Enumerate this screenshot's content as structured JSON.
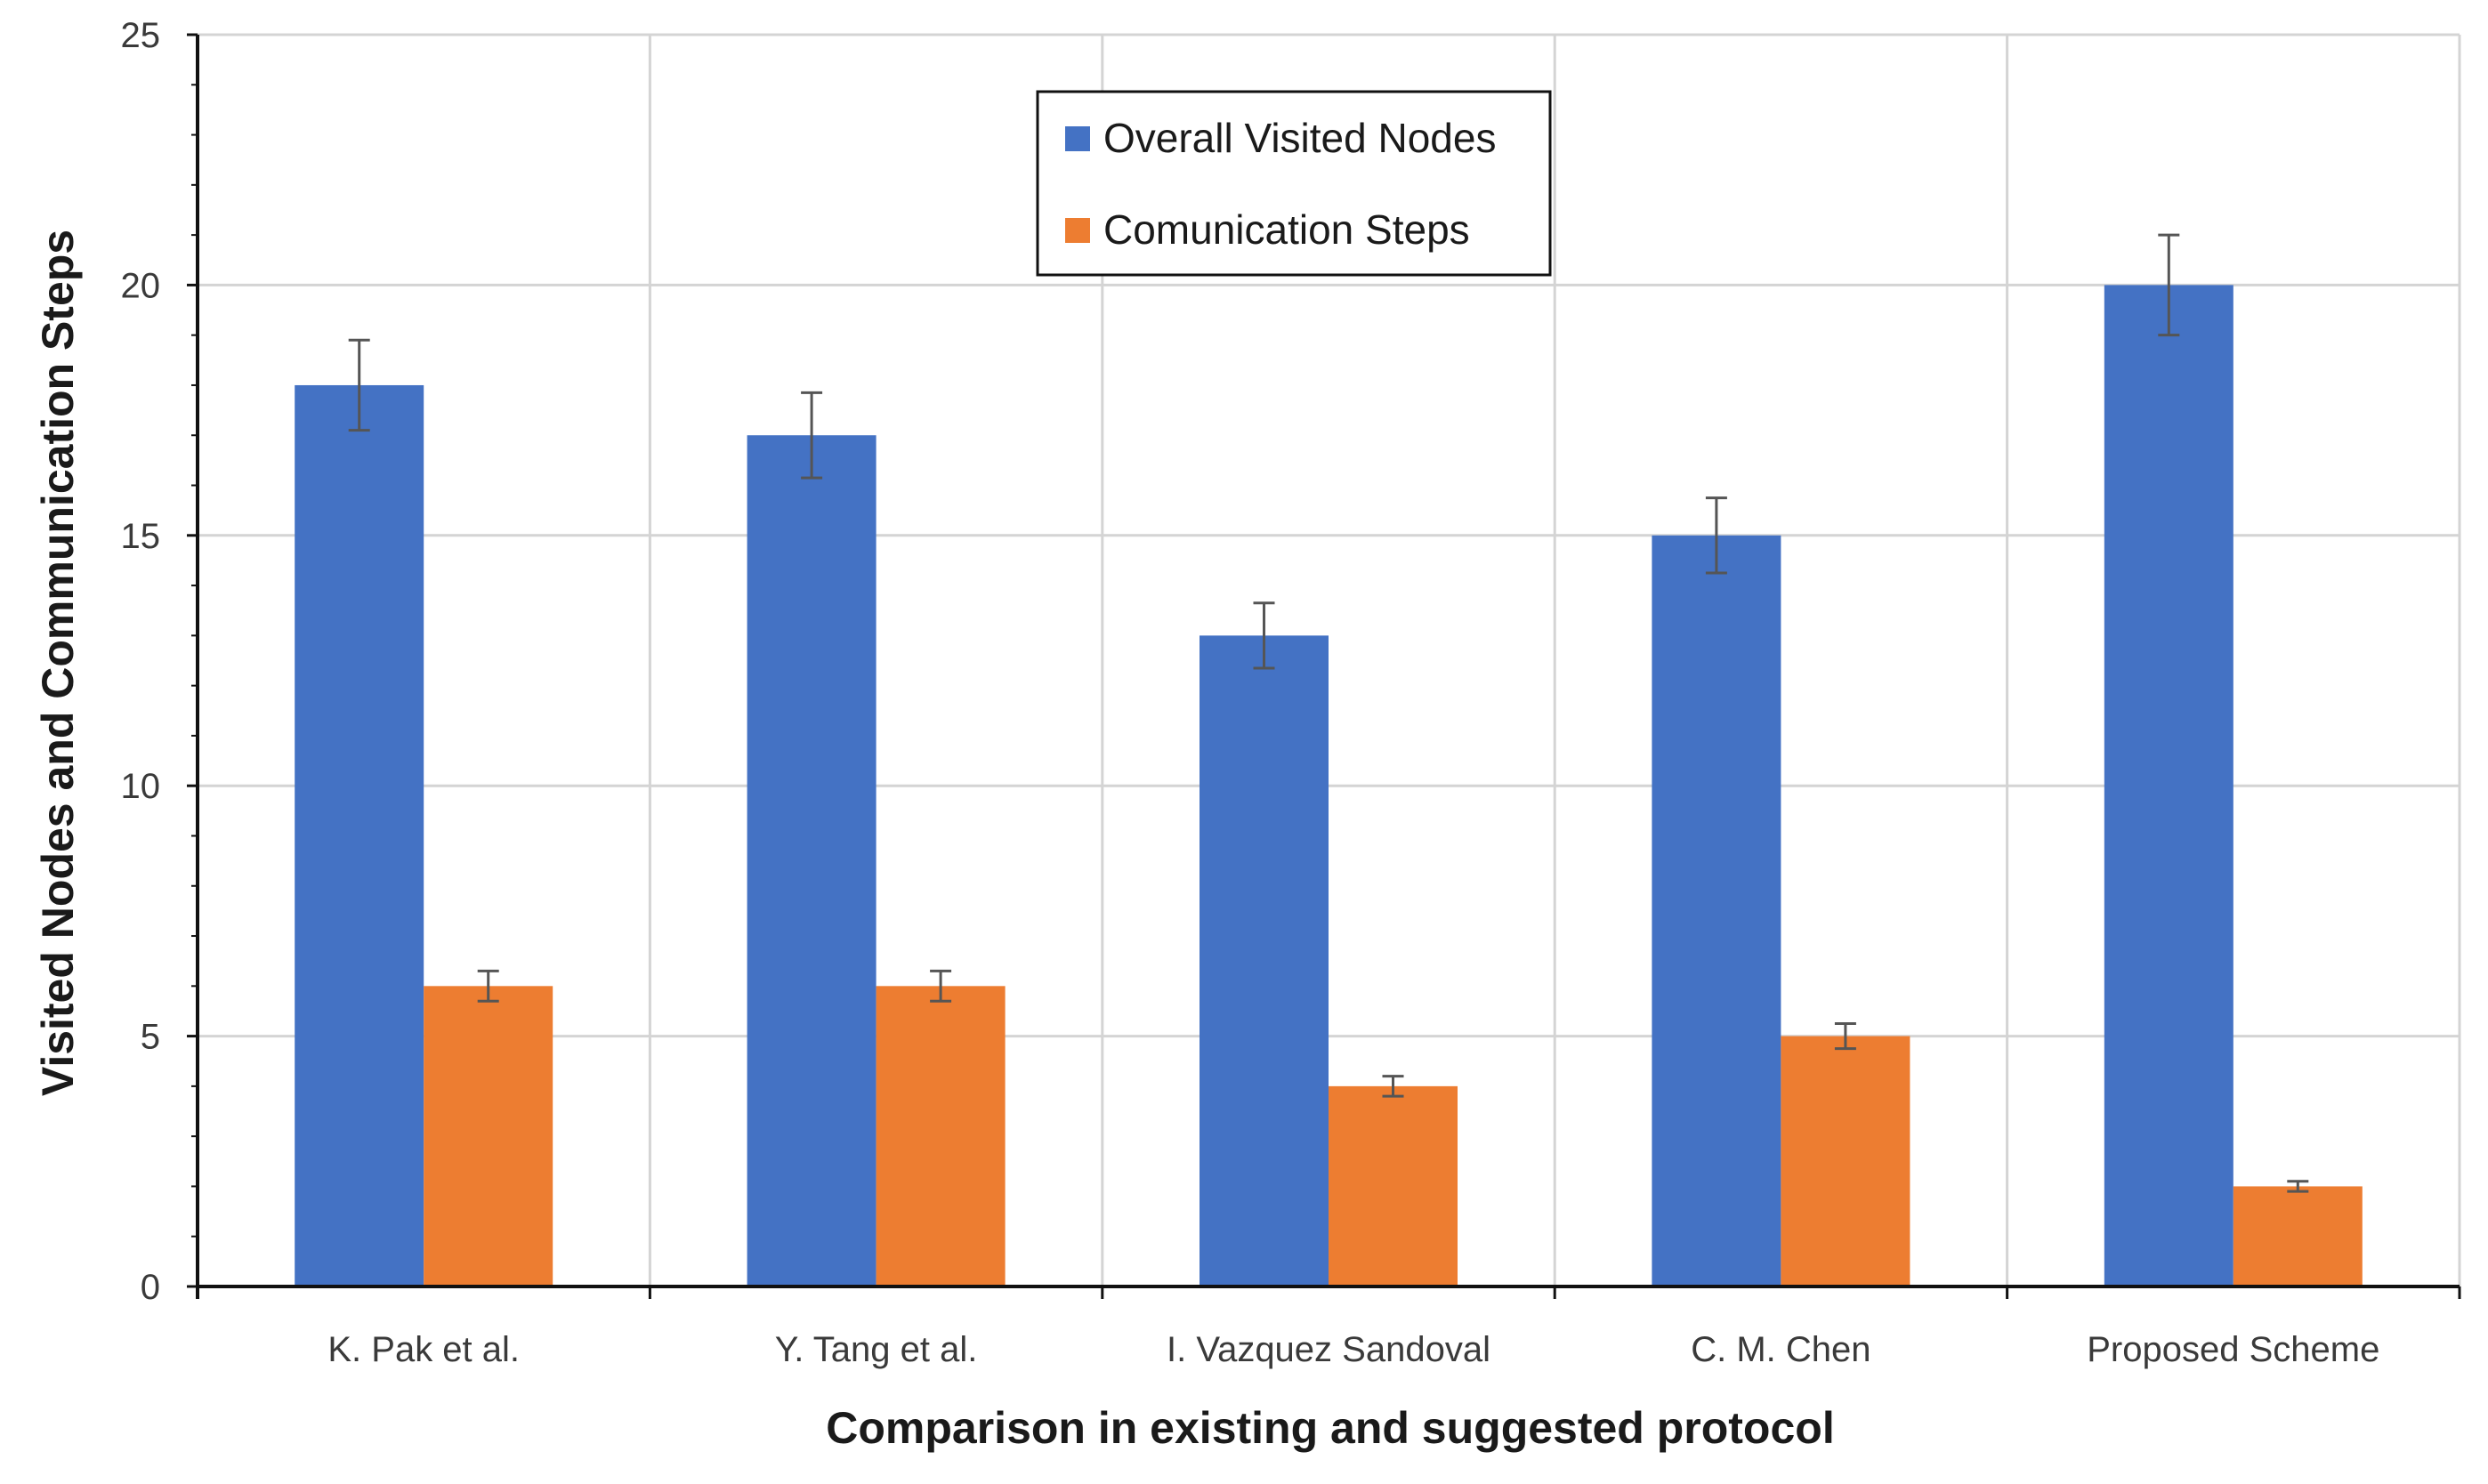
{
  "chart_data": {
    "type": "bar",
    "title": "",
    "xlabel": "Comparison  in existing and suggested protocol",
    "ylabel": "Visited Nodes and Communication Steps",
    "categories": [
      "K. Pak et al.",
      "Y. Tang et al.",
      "I. Vazquez Sandoval",
      "C. M. Chen",
      "Proposed Scheme"
    ],
    "ylim": [
      0,
      25
    ],
    "yticks": [
      0,
      5,
      10,
      15,
      20,
      25
    ],
    "grid": true,
    "legend_position": "top-center",
    "series": [
      {
        "name": "Overall Visited Nodes",
        "color": "#4472C4",
        "values": [
          18,
          17,
          13,
          15,
          20
        ],
        "error": [
          0.9,
          0.85,
          0.65,
          0.75,
          1.0
        ]
      },
      {
        "name": "Comunication Steps",
        "color": "#ED7D31",
        "values": [
          6,
          6,
          4,
          5,
          2
        ],
        "error": [
          0.3,
          0.3,
          0.2,
          0.25,
          0.1
        ]
      }
    ]
  }
}
